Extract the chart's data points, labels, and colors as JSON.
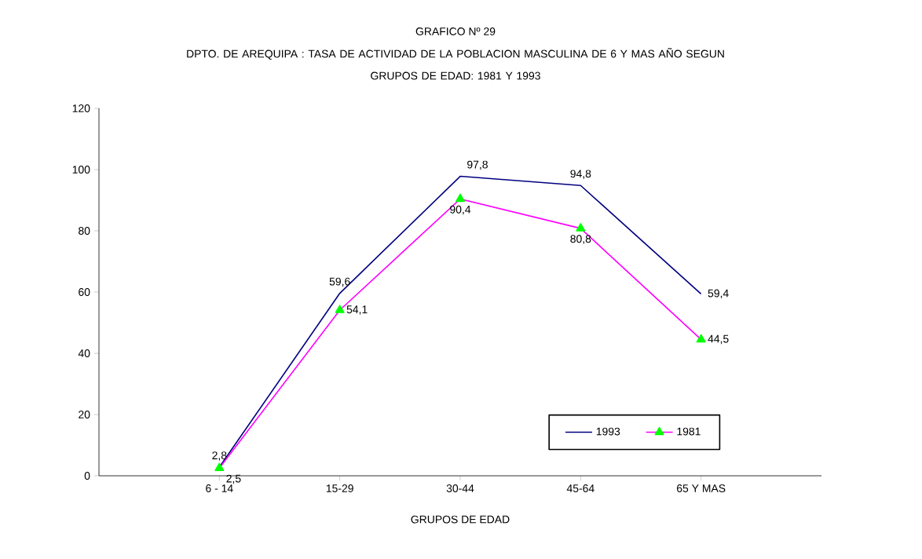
{
  "chart_data": {
    "type": "line",
    "title": "GRAFICO Nº 29",
    "subtitle": "DPTO. DE AREQUIPA : TASA DE ACTIVIDAD DE LA POBLACION MASCULINA DE 6 Y MAS AÑO SEGUN GRUPOS DE EDAD: 1981 Y 1993",
    "xlabel": "GRUPOS DE EDAD",
    "categories": [
      "6 - 14",
      "15-29",
      "30-44",
      "45-64",
      "65 Y MAS"
    ],
    "series": [
      {
        "name": "1993",
        "color": "#000080",
        "marker": "none",
        "values": [
          2.8,
          59.6,
          97.8,
          94.8,
          59.4
        ],
        "value_labels": [
          "2,8",
          "59,6",
          "97,8",
          "94,8",
          "59,4"
        ]
      },
      {
        "name": "1981",
        "color": "#ff00ff",
        "marker": "triangle",
        "values": [
          2.5,
          54.1,
          90.4,
          80.8,
          44.5
        ],
        "value_labels": [
          "2,5",
          "54,1",
          "90,4",
          "80,8",
          "44,5"
        ]
      }
    ],
    "ylim": [
      0,
      120
    ],
    "yticks": [
      0,
      20,
      40,
      60,
      80,
      100,
      120
    ],
    "grid": false,
    "legend": "bottom right"
  }
}
